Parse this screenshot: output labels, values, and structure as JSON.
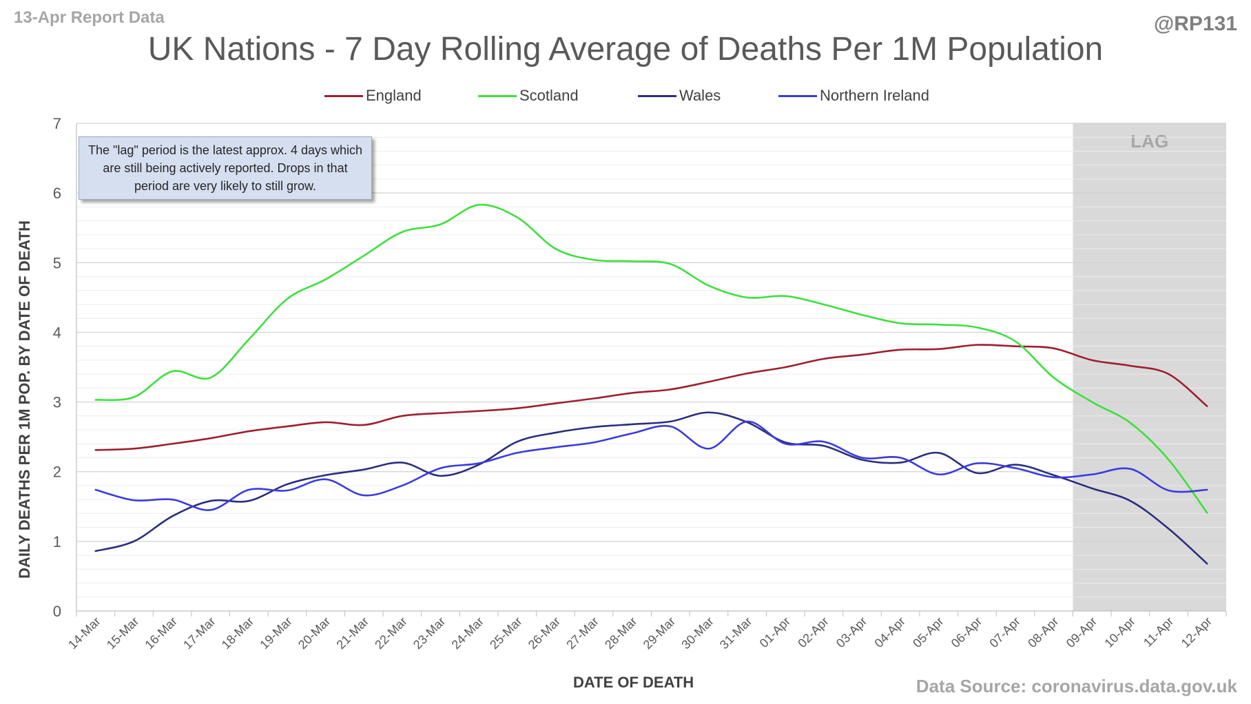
{
  "header": {
    "report_tag": "13-Apr Report Data",
    "author": "@RP131",
    "source": "Data Source: coronavirus.data.gov.uk"
  },
  "note": "The \"lag\" period is the latest approx. 4 days which are still being actively reported. Drops in that period are very likely to still grow.",
  "colors": {
    "England": "#9e1e2f",
    "Scotland": "#3de03d",
    "Wales": "#2a2d7e",
    "Northern Ireland": "#3a3adf",
    "lag": "#d9d9d9",
    "grid": "#d9d9d9"
  },
  "chart_data": {
    "type": "line",
    "title": "UK Nations - 7 Day Rolling Average of Deaths Per 1M Population",
    "xlabel": "DATE OF DEATH",
    "ylabel": "DAILY DEATHS PER 1M POP. BY DATE OF DEATH",
    "ylim": [
      0,
      7
    ],
    "yticks": [
      0,
      1,
      2,
      3,
      4,
      5,
      6,
      7
    ],
    "grid": true,
    "legend_position": "top",
    "shaded_region": {
      "label": "LAG",
      "from": "08-Apr",
      "to": "12-Apr"
    },
    "categories": [
      "14-Mar",
      "15-Mar",
      "16-Mar",
      "17-Mar",
      "18-Mar",
      "19-Mar",
      "20-Mar",
      "21-Mar",
      "22-Mar",
      "23-Mar",
      "24-Mar",
      "25-Mar",
      "26-Mar",
      "27-Mar",
      "28-Mar",
      "29-Mar",
      "30-Mar",
      "31-Mar",
      "01-Apr",
      "02-Apr",
      "03-Apr",
      "04-Apr",
      "05-Apr",
      "06-Apr",
      "07-Apr",
      "08-Apr",
      "09-Apr",
      "10-Apr",
      "11-Apr",
      "12-Apr"
    ],
    "series": [
      {
        "name": "England",
        "values": [
          2.31,
          2.33,
          2.4,
          2.48,
          2.58,
          2.65,
          2.71,
          2.67,
          2.8,
          2.84,
          2.87,
          2.91,
          2.98,
          3.05,
          3.13,
          3.18,
          3.29,
          3.41,
          3.5,
          3.62,
          3.68,
          3.75,
          3.76,
          3.82,
          3.8,
          3.77,
          3.6,
          3.52,
          3.4,
          2.94
        ]
      },
      {
        "name": "Scotland",
        "values": [
          3.03,
          3.07,
          3.44,
          3.35,
          3.9,
          4.48,
          4.76,
          5.1,
          5.44,
          5.55,
          5.83,
          5.65,
          5.2,
          5.04,
          5.02,
          4.98,
          4.67,
          4.5,
          4.52,
          4.4,
          4.25,
          4.13,
          4.11,
          4.07,
          3.87,
          3.35,
          3.0,
          2.7,
          2.17,
          1.41
        ]
      },
      {
        "name": "Wales",
        "values": [
          0.86,
          1.0,
          1.36,
          1.58,
          1.58,
          1.82,
          1.95,
          2.03,
          2.13,
          1.94,
          2.1,
          2.43,
          2.56,
          2.64,
          2.68,
          2.72,
          2.85,
          2.71,
          2.42,
          2.37,
          2.17,
          2.13,
          2.27,
          1.98,
          2.1,
          1.95,
          1.76,
          1.58,
          1.18,
          0.68
        ]
      },
      {
        "name": "Northern Ireland",
        "values": [
          1.74,
          1.59,
          1.6,
          1.45,
          1.74,
          1.73,
          1.89,
          1.66,
          1.8,
          2.05,
          2.12,
          2.27,
          2.35,
          2.42,
          2.55,
          2.65,
          2.33,
          2.72,
          2.4,
          2.43,
          2.2,
          2.2,
          1.96,
          2.12,
          2.05,
          1.92,
          1.96,
          2.04,
          1.73,
          1.74
        ]
      }
    ]
  }
}
